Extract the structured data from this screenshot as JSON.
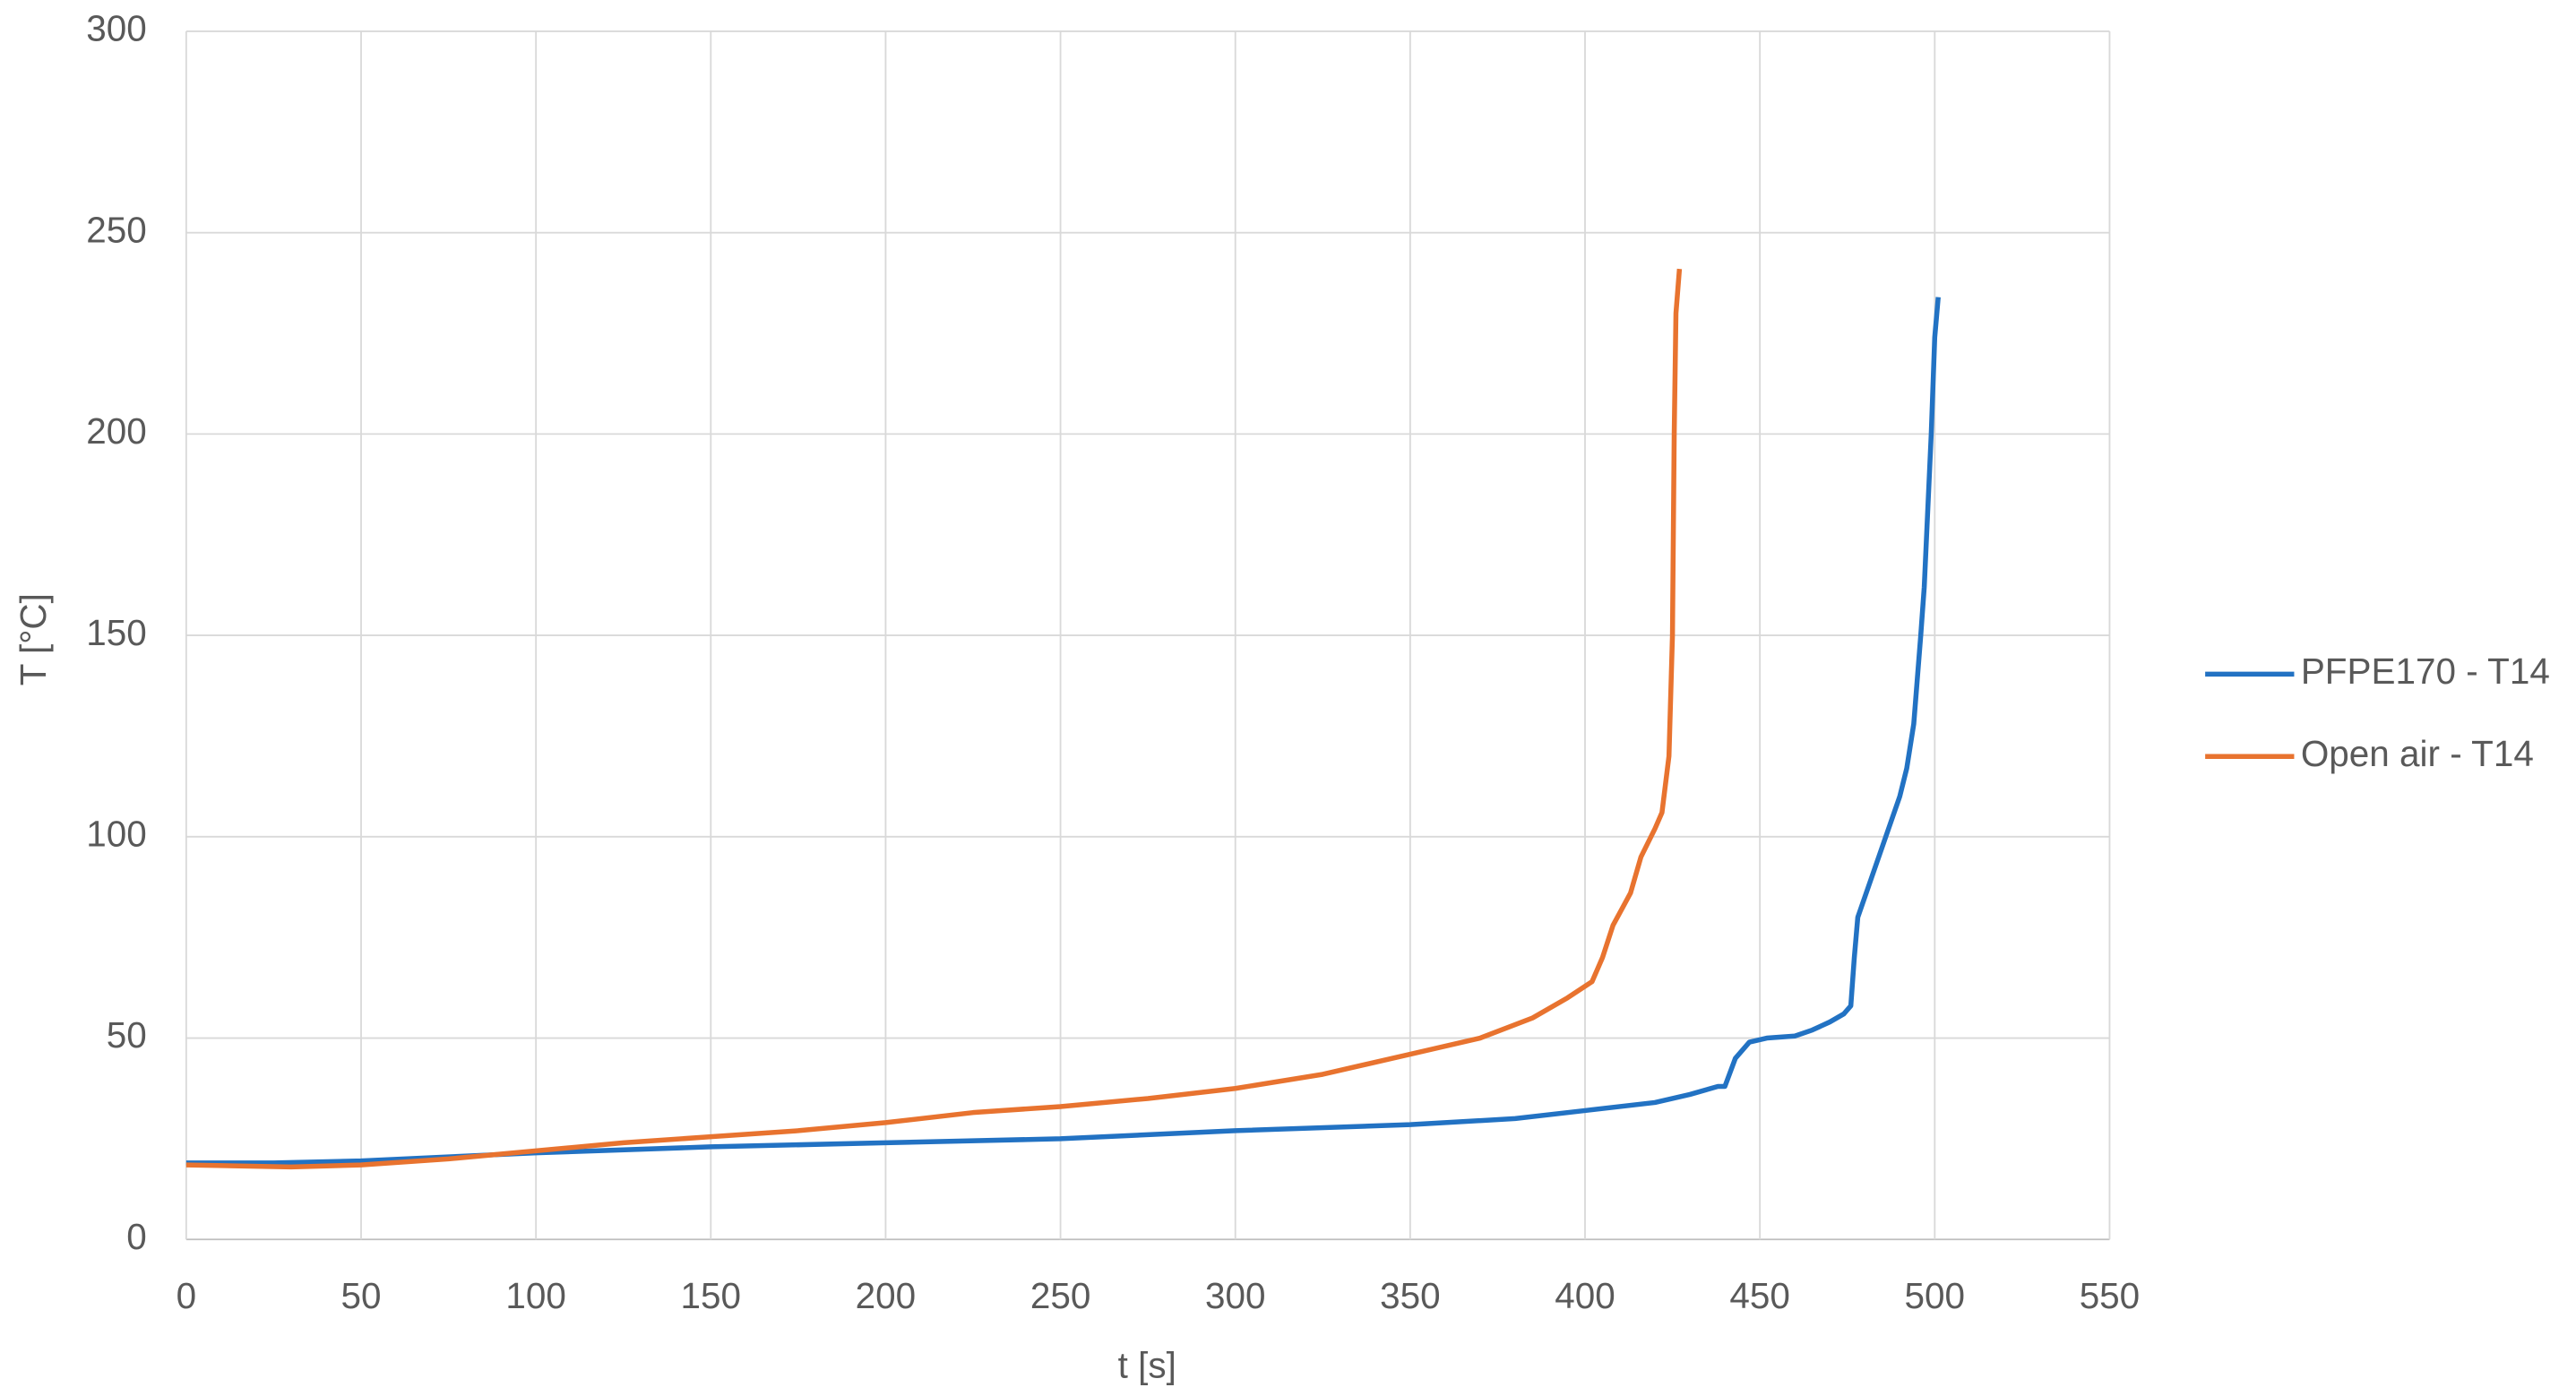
{
  "chart_data": {
    "type": "line",
    "xlabel": "t [s]",
    "ylabel": "T [°C]",
    "xlim": [
      0,
      550
    ],
    "xticks": [
      0,
      50,
      100,
      150,
      200,
      250,
      300,
      350,
      400,
      450,
      500,
      550
    ],
    "ylim": [
      0,
      300
    ],
    "yticks": [
      0,
      50,
      100,
      150,
      200,
      250,
      300
    ],
    "grid": true,
    "legend": "right",
    "series": [
      {
        "name": "PFPE170 - T14",
        "color": "#2272c3",
        "x": [
          0,
          25,
          50,
          75,
          100,
          150,
          200,
          250,
          300,
          350,
          380,
          400,
          420,
          430,
          438,
          440,
          443,
          447,
          452,
          460,
          465,
          470,
          474,
          476,
          477,
          478,
          482,
          490,
          492,
          494,
          496,
          497,
          499,
          500,
          501
        ],
        "values": [
          19,
          19,
          19.5,
          20.5,
          21.5,
          23,
          24,
          25,
          27,
          28.5,
          30,
          32,
          34,
          36,
          38,
          38,
          45,
          49,
          50,
          50.5,
          52,
          54,
          56,
          58,
          70,
          80,
          90,
          110,
          117,
          128,
          150,
          162,
          200,
          224,
          234
        ]
      },
      {
        "name": "Open air - T14",
        "color": "#e8732f",
        "x": [
          0,
          30,
          50,
          75,
          100,
          125,
          150,
          175,
          200,
          225,
          250,
          275,
          300,
          325,
          350,
          370,
          385,
          395,
          402,
          405,
          408,
          413,
          416,
          420,
          422,
          424,
          425,
          425.5,
          426,
          427
        ],
        "values": [
          18.5,
          18,
          18.5,
          20,
          22,
          24,
          25.5,
          27,
          29,
          31.5,
          33,
          35,
          37.5,
          41,
          46,
          50,
          55,
          60,
          64,
          70,
          78,
          86,
          95,
          102,
          106,
          120,
          150,
          200,
          230,
          241
        ]
      }
    ]
  }
}
